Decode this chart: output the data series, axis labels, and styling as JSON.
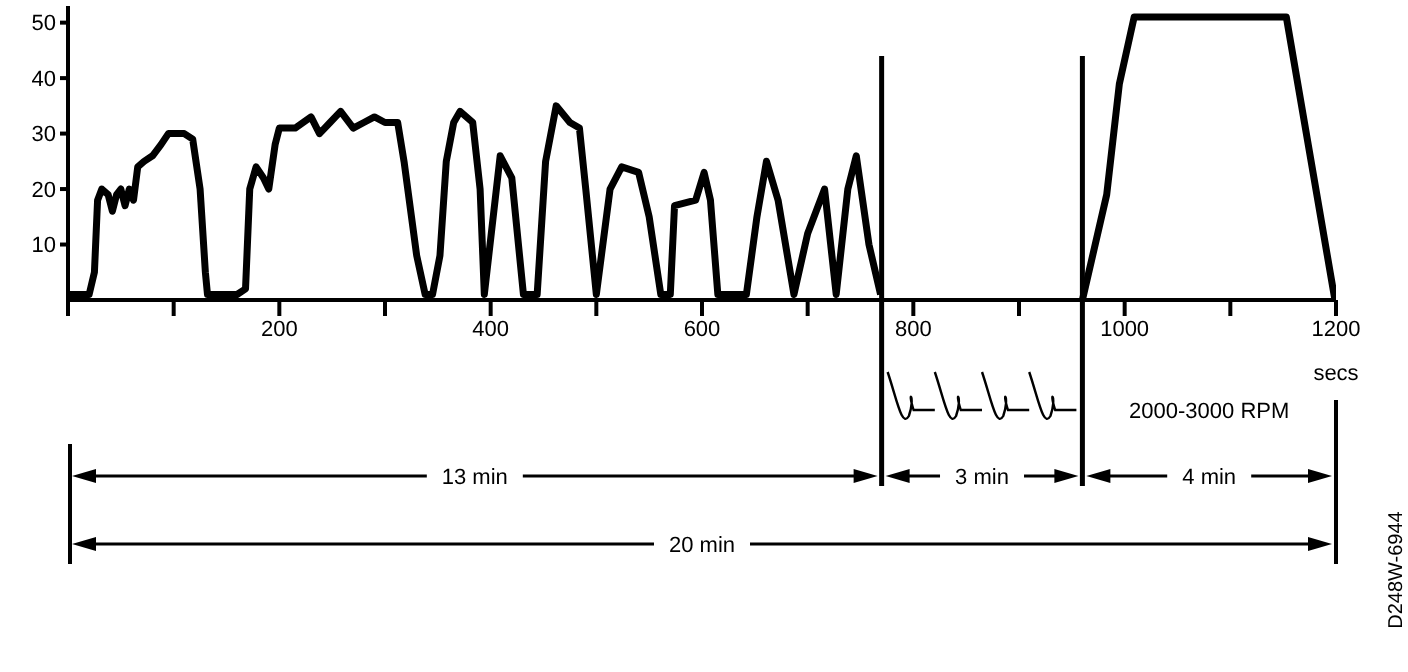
{
  "chart_data": {
    "type": "line",
    "xlabel": "secs",
    "x": [
      0,
      20,
      25,
      28,
      32,
      38,
      42,
      46,
      50,
      54,
      58,
      62,
      66,
      72,
      80,
      88,
      95,
      110,
      118,
      125,
      130,
      132,
      160,
      168,
      172,
      178,
      185,
      190,
      196,
      200,
      215,
      230,
      238,
      248,
      258,
      270,
      280,
      290,
      300,
      312,
      318,
      330,
      338,
      345,
      352,
      358,
      365,
      371,
      383,
      390,
      394,
      409,
      420,
      431,
      444,
      452,
      462,
      475,
      484,
      490,
      500,
      513,
      524,
      540,
      550,
      561,
      570,
      574,
      594,
      602,
      608,
      615,
      642,
      652,
      661,
      672,
      687,
      700,
      716,
      727,
      738,
      746,
      758,
      769,
      770,
      960,
      983,
      995,
      1009,
      1153,
      1199
    ],
    "series": [
      {
        "color": "#000000",
        "values": [
          1,
          1,
          5,
          18,
          20,
          19,
          16,
          19,
          20,
          17,
          20,
          18,
          24,
          25,
          26,
          28,
          30,
          30,
          29,
          20,
          5,
          1,
          1,
          2,
          20,
          24,
          22,
          20,
          28,
          31,
          31,
          33,
          30,
          32,
          34,
          31,
          32,
          33,
          32,
          32,
          25,
          8,
          1,
          1,
          8,
          25,
          32,
          34,
          32,
          20,
          1,
          26,
          22,
          1,
          1,
          25,
          35,
          32,
          31,
          20,
          1,
          20,
          24,
          23,
          15,
          1,
          1,
          17,
          18,
          23,
          18,
          1,
          1,
          15,
          25,
          18,
          1,
          12,
          20,
          1,
          20,
          26,
          10,
          1,
          null,
          0,
          19,
          39,
          51,
          51,
          0
        ]
      }
    ],
    "xlim": [
      0,
      1200
    ],
    "ylim": [
      0,
      53
    ],
    "xticks": [
      {
        "value": 0,
        "label": null
      },
      {
        "value": 100,
        "label": null
      },
      200,
      {
        "value": 300,
        "label": null
      },
      400,
      {
        "value": 500,
        "label": null
      },
      600,
      {
        "value": 700,
        "label": null
      },
      800,
      {
        "value": 900,
        "label": null
      },
      1000,
      {
        "value": 1100,
        "label": null
      },
      1200
    ],
    "yticks": [
      10,
      20,
      30,
      40,
      50
    ],
    "grid": false,
    "legend": false,
    "marker": "none",
    "line_style": "solid",
    "ref_lines": [
      {
        "axis": "x",
        "value": 770
      },
      {
        "axis": "x",
        "value": 960
      }
    ],
    "annotations": [
      "13 min",
      "3 min",
      "4 min",
      "20 min",
      "2000-3000 RPM",
      "D248W-6944"
    ]
  }
}
